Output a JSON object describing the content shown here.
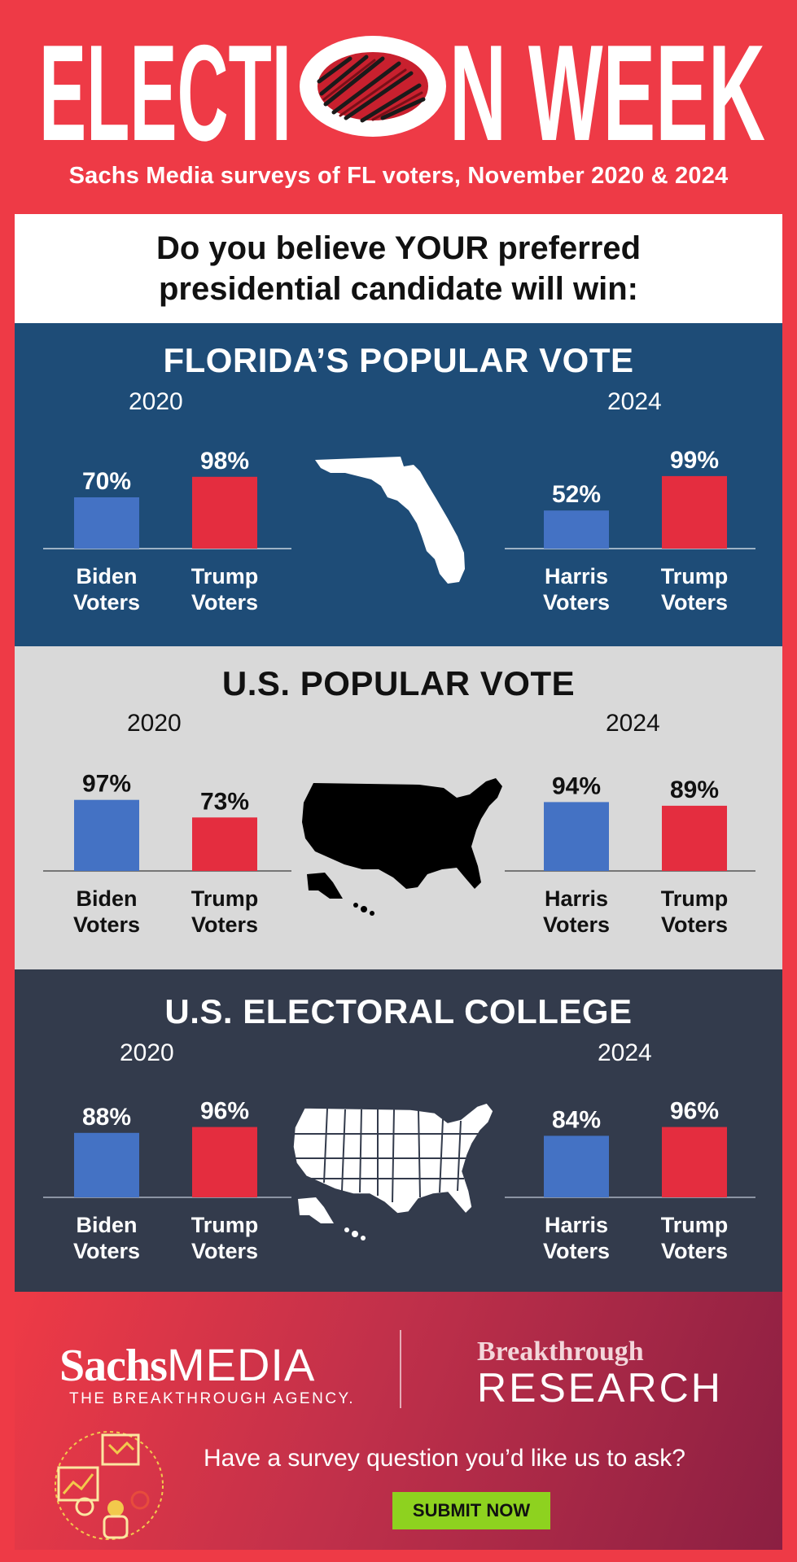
{
  "header": {
    "title_part1": "ELECTI",
    "title_part2": "N WEEK",
    "subtitle": "Sachs Media surveys of FL voters, November 2020 & 2024"
  },
  "question": {
    "line1": "Do you believe YOUR preferred",
    "line2": "presidential candidate will win:"
  },
  "colors": {
    "red": "#e42d3f",
    "blue": "#4472c4",
    "navy": "#1e4c77",
    "gray": "#d9d9d9",
    "slate": "#333b4c",
    "footer_green": "#8ed21f"
  },
  "chart_data": [
    {
      "type": "bar",
      "title": "FLORIDA’S POPULAR VOTE",
      "icon": "florida-map-icon",
      "groups": [
        {
          "year": "2020",
          "categories": [
            "Biden Voters",
            "Trump Voters"
          ],
          "values": [
            70,
            98
          ],
          "labels": [
            "70%",
            "98%"
          ]
        },
        {
          "year": "2024",
          "categories": [
            "Harris Voters",
            "Trump Voters"
          ],
          "values": [
            52,
            99
          ],
          "labels": [
            "52%",
            "99%"
          ]
        }
      ],
      "ylim": [
        0,
        100
      ]
    },
    {
      "type": "bar",
      "title": "U.S. POPULAR VOTE",
      "icon": "usa-map-icon",
      "groups": [
        {
          "year": "2020",
          "categories": [
            "Biden Voters",
            "Trump Voters"
          ],
          "values": [
            97,
            73
          ],
          "labels": [
            "97%",
            "73%"
          ]
        },
        {
          "year": "2024",
          "categories": [
            "Harris Voters",
            "Trump Voters"
          ],
          "values": [
            94,
            89
          ],
          "labels": [
            "94%",
            "89%"
          ]
        }
      ],
      "ylim": [
        0,
        100
      ]
    },
    {
      "type": "bar",
      "title": "U.S. ELECTORAL COLLEGE",
      "icon": "usa-states-map-icon",
      "groups": [
        {
          "year": "2020",
          "categories": [
            "Biden Voters",
            "Trump Voters"
          ],
          "values": [
            88,
            96
          ],
          "labels": [
            "88%",
            "96%"
          ]
        },
        {
          "year": "2024",
          "categories": [
            "Harris Voters",
            "Trump Voters"
          ],
          "values": [
            84,
            96
          ],
          "labels": [
            "84%",
            "96%"
          ]
        }
      ],
      "ylim": [
        0,
        100
      ]
    }
  ],
  "footer": {
    "brand_bold": "Sachs",
    "brand_light": "MEDIA",
    "brand_tagline": "THE BREAKTHROUGH AGENCY.",
    "partner_line1": "Breakthrough",
    "partner_line2": "RESEARCH",
    "cta_text": "Have a survey question you’d like us to ask?",
    "submit_label": "SUBMIT NOW"
  }
}
